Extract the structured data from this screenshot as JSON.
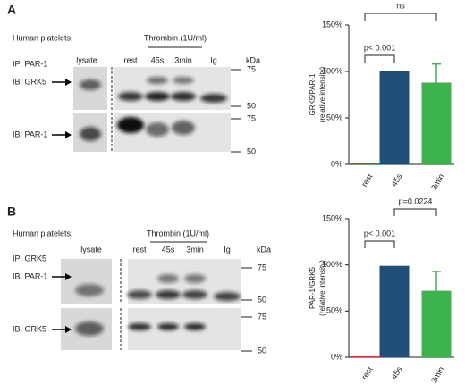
{
  "panels": [
    {
      "label": "A",
      "header": "Human platelets:",
      "treatment": "Thrombin (1U/ml)",
      "ip": "IP: PAR-1",
      "lanes": [
        "lysate",
        "rest",
        "45s",
        "3min",
        "Ig"
      ],
      "unit": "kDa",
      "blots": [
        {
          "label": "IB: GRK5",
          "markers": [
            75,
            50
          ]
        },
        {
          "label": "IB: PAR-1",
          "markers": [
            75,
            50
          ]
        }
      ]
    },
    {
      "label": "B",
      "header": "Human platelets:",
      "treatment": "Thrombin (1U/ml)",
      "ip": "IP: GRK5",
      "lanes": [
        "lysate",
        "rest",
        "45s",
        "3min",
        "Ig"
      ],
      "unit": "kDa",
      "blots": [
        {
          "label": "IB: PAR-1",
          "markers": [
            75,
            50
          ]
        },
        {
          "label": "IB: GRK5",
          "markers": [
            75,
            50
          ]
        }
      ]
    }
  ],
  "chart_data": [
    {
      "type": "bar",
      "ylabel": [
        "GRK5/PAR-1",
        "(relative intensity)"
      ],
      "categories": [
        "rest",
        "45s",
        "3min"
      ],
      "values": [
        1,
        100,
        88
      ],
      "errors": [
        null,
        null,
        20
      ],
      "colors": [
        "#c0392b",
        "#1f4e79",
        "#3cb44b"
      ],
      "ylim": [
        0,
        150
      ],
      "yticks": [
        {
          "value": 0,
          "label": "0%"
        },
        {
          "value": 50,
          "label": "50%"
        },
        {
          "value": 100,
          "label": "100%"
        },
        {
          "value": 150,
          "label": "150%"
        }
      ],
      "annotations": [
        {
          "text": "p< 0.001",
          "from": "rest",
          "to": "45s"
        },
        {
          "text": "ns",
          "from": "rest",
          "to": "3min"
        }
      ]
    },
    {
      "type": "bar",
      "ylabel": [
        "PAR-1/GRK5",
        "(relative intensity)"
      ],
      "categories": [
        "rest",
        "45s",
        "3min"
      ],
      "values": [
        1,
        99,
        72
      ],
      "errors": [
        null,
        null,
        21
      ],
      "colors": [
        "#c0392b",
        "#1f4e79",
        "#3cb44b"
      ],
      "ylim": [
        0,
        150
      ],
      "yticks": [
        {
          "value": 0,
          "label": "0%"
        },
        {
          "value": 50,
          "label": "50%"
        },
        {
          "value": 100,
          "label": "100%"
        },
        {
          "value": 150,
          "label": "150%"
        }
      ],
      "annotations": [
        {
          "text": "p< 0.001",
          "from": "rest",
          "to": "45s"
        },
        {
          "text": "p=0.0224",
          "from": "45s",
          "to": "3min"
        }
      ]
    }
  ]
}
